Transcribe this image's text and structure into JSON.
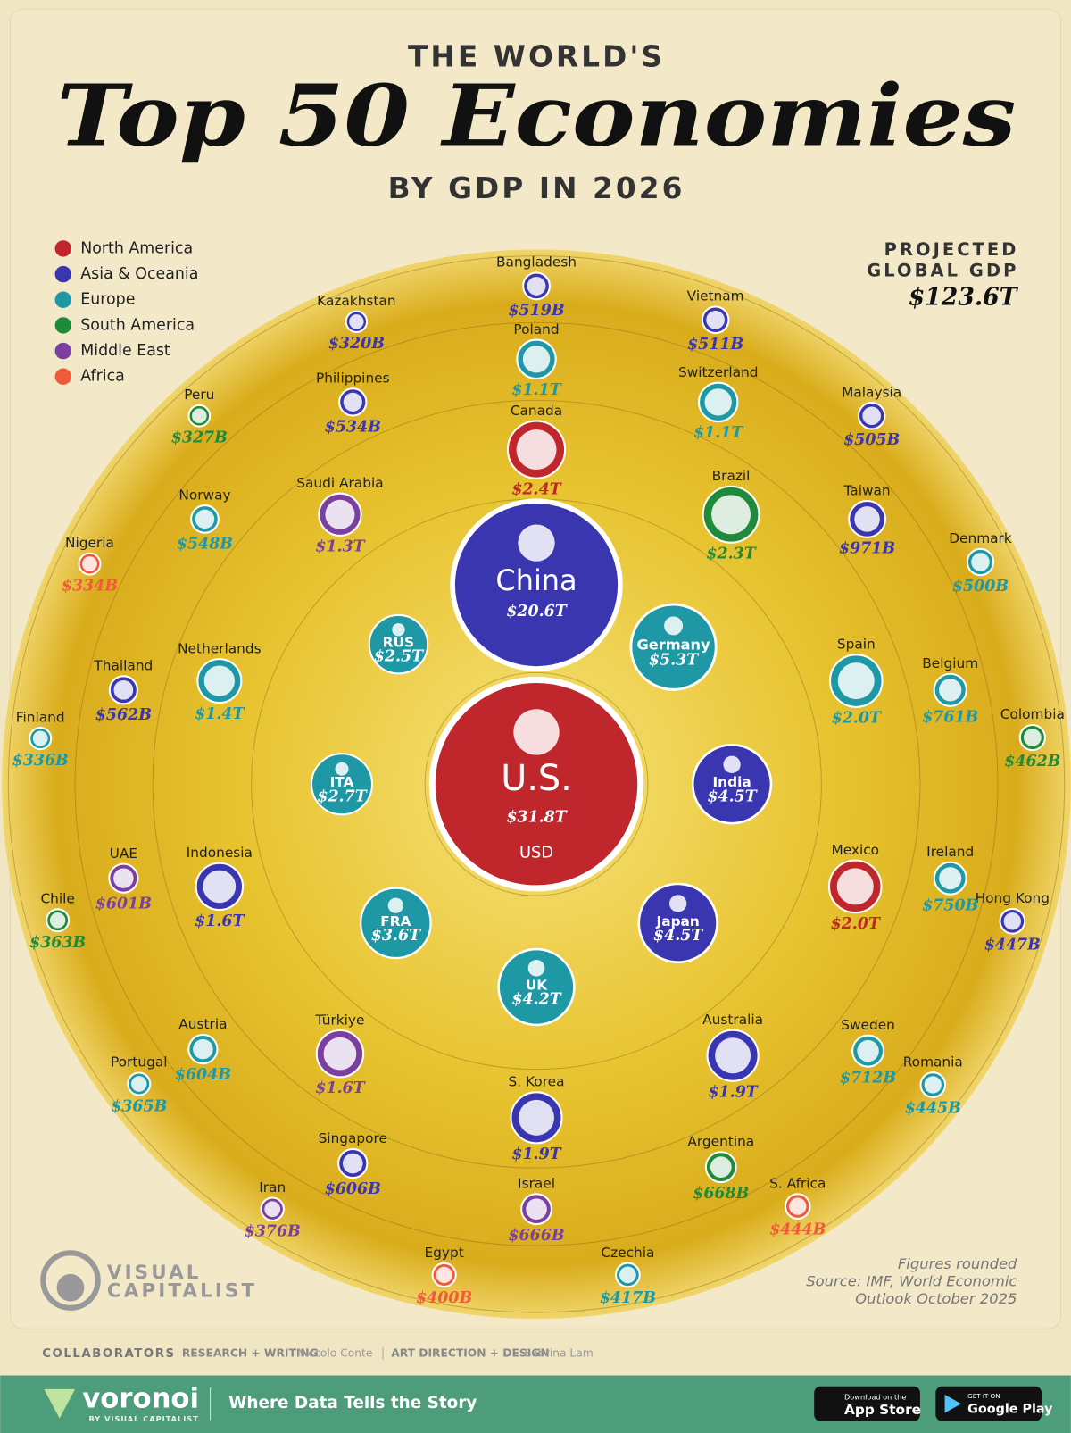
{
  "chart_data": {
    "type": "bubble",
    "pretitle": "THE WORLD'S",
    "title": "Top 50 Economies",
    "subtitle": "BY GDP IN 2026",
    "unit_label": "USD",
    "total_label": [
      "PROJECTED",
      "GLOBAL GDP"
    ],
    "total_value_label": "$123.6T",
    "notes": [
      "Figures rounded",
      "Source: IMF, World Economic",
      "Outlook October 2025"
    ],
    "series": [
      {
        "name": "North America",
        "color": "#c0272d",
        "countries": [
          "U.S.",
          "Canada",
          "Mexico"
        ],
        "values": [
          31800,
          2400,
          2000
        ],
        "value_labels": [
          "$31.8T",
          "$2.4T",
          "$2.0T"
        ]
      },
      {
        "name": "Asia & Oceania",
        "color": "#3a36b0",
        "countries": [
          "China",
          "Japan",
          "India",
          "Australia",
          "S. Korea",
          "Indonesia",
          "Taiwan",
          "Thailand",
          "Philippines",
          "Bangladesh",
          "Vietnam",
          "Malaysia",
          "Hong Kong",
          "Kazakhstan",
          "Singapore"
        ],
        "values": [
          20600,
          4500,
          4500,
          1900,
          1900,
          1600,
          971,
          562,
          534,
          519,
          511,
          505,
          447,
          320,
          606
        ],
        "value_labels": [
          "$20.6T",
          "$4.5T",
          "$4.5T",
          "$1.9T",
          "$1.9T",
          "$1.6T",
          "$971B",
          "$562B",
          "$534B",
          "$519B",
          "$511B",
          "$505B",
          "$447B",
          "$320B",
          "$606B"
        ]
      },
      {
        "name": "Europe",
        "color": "#1e98a4",
        "countries": [
          "Germany",
          "UK",
          "FRA",
          "ITA",
          "RUS",
          "Spain",
          "Netherlands",
          "Switzerland",
          "Poland",
          "Belgium",
          "Ireland",
          "Sweden",
          "Austria",
          "Norway",
          "Denmark",
          "Romania",
          "Czechia",
          "Portugal",
          "Finland"
        ],
        "values": [
          5300,
          4200,
          3600,
          2700,
          2500,
          2000,
          1400,
          1100,
          1100,
          761,
          750,
          712,
          604,
          548,
          500,
          445,
          417,
          365,
          336
        ],
        "value_labels": [
          "$5.3T",
          "$4.2T",
          "$3.6T",
          "$2.7T",
          "$2.5T",
          "$2.0T",
          "$1.4T",
          "$1.1T",
          "$1.1T",
          "$761B",
          "$750B",
          "$712B",
          "$604B",
          "$548B",
          "$500B",
          "$445B",
          "$417B",
          "$365B",
          "$336B"
        ]
      },
      {
        "name": "South America",
        "color": "#1f8a3a",
        "countries": [
          "Brazil",
          "Argentina",
          "Colombia",
          "Chile",
          "Peru"
        ],
        "values": [
          2300,
          668,
          462,
          363,
          327
        ],
        "value_labels": [
          "$2.3T",
          "$668B",
          "$462B",
          "$363B",
          "$327B"
        ]
      },
      {
        "name": "Middle East",
        "color": "#7b3fa0",
        "countries": [
          "Saudi Arabia",
          "Türkiye",
          "Israel",
          "UAE",
          "Iran"
        ],
        "values": [
          1300,
          1600,
          666,
          601,
          376
        ],
        "value_labels": [
          "$1.3T",
          "$1.6T",
          "$666B",
          "$601B",
          "$376B"
        ]
      },
      {
        "name": "Africa",
        "color": "#f05a3a",
        "countries": [
          "Egypt",
          "S. Africa",
          "Nigeria"
        ],
        "values": [
          400,
          444,
          334
        ],
        "value_labels": [
          "$400B",
          "$444B",
          "$334B"
        ]
      }
    ]
  },
  "footer": {
    "logo": [
      "VISUAL",
      "CAPITALIST"
    ],
    "collaborators": "COLLABORATORS",
    "research_label": "RESEARCH + WRITING",
    "research_name": "Niccolo Conte",
    "design_label": "ART DIRECTION + DESIGN",
    "design_name": "Sabrina Lam",
    "brand": "voronoi",
    "brand_sub": "BY VISUAL CAPITALIST",
    "tagline": "Where Data Tells the Story",
    "app_store": [
      "Download on the",
      "App Store"
    ],
    "google_play": [
      "GET IT ON",
      "Google Play"
    ]
  }
}
